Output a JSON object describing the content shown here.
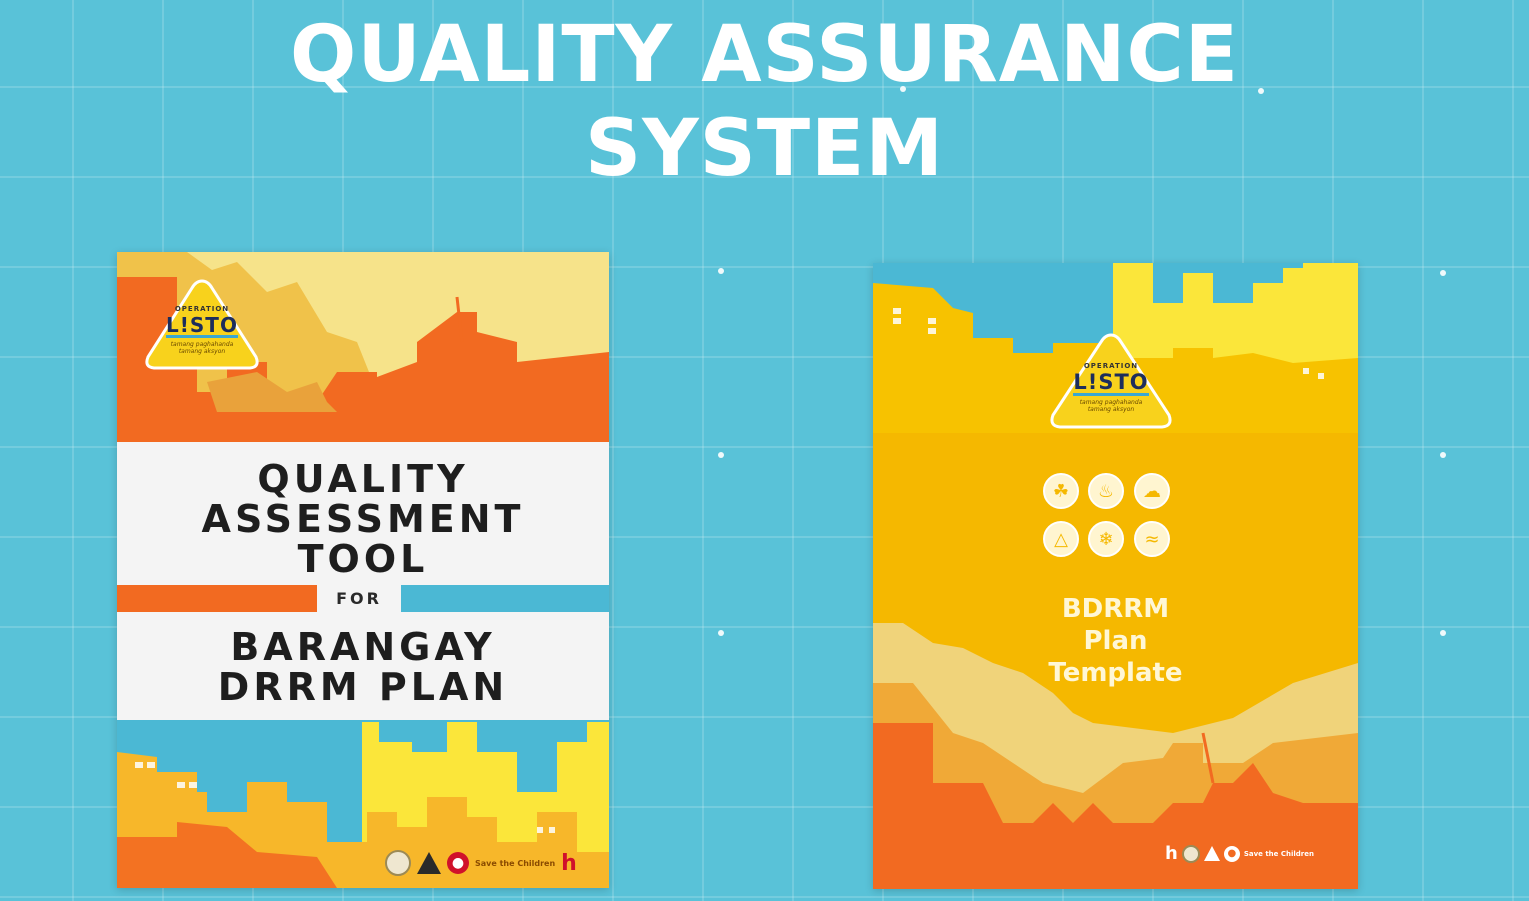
{
  "slide": {
    "title_lines": [
      "QUALITY ASSURANCE",
      "SYSTEM"
    ]
  },
  "left_cover": {
    "logo": {
      "top_text": "OPERATION",
      "brand": "L!STO",
      "tagline": [
        "tamang paghahanda",
        "tamang aksyon"
      ]
    },
    "title_lines": [
      "QUALITY",
      "ASSESSMENT",
      "TOOL"
    ],
    "connector": "FOR",
    "subtitle_lines": [
      "BARANGAY",
      "DRRM PLAN"
    ],
    "partners": {
      "stc_label": "Save the Children",
      "h_mark": "h"
    }
  },
  "right_cover": {
    "logo": {
      "top_text": "OPERATION",
      "brand": "L!STO",
      "tagline": [
        "tamang paghahanda",
        "tamang aksyon"
      ]
    },
    "hazard_icons": [
      "flood-icon",
      "fire-icon",
      "storm-icon",
      "earthquake-icon",
      "typhoon-icon",
      "tsunami-icon"
    ],
    "title_lines": [
      "BDRRM",
      "Plan",
      "Template"
    ],
    "partners": {
      "h_mark": "h",
      "stc_label": "Save the Children"
    }
  },
  "colors": {
    "background": "#59c2d8",
    "orange": "#f26a21",
    "yellow": "#f5b800",
    "cyan": "#4bb8d4",
    "cream": "#f6e38a"
  }
}
